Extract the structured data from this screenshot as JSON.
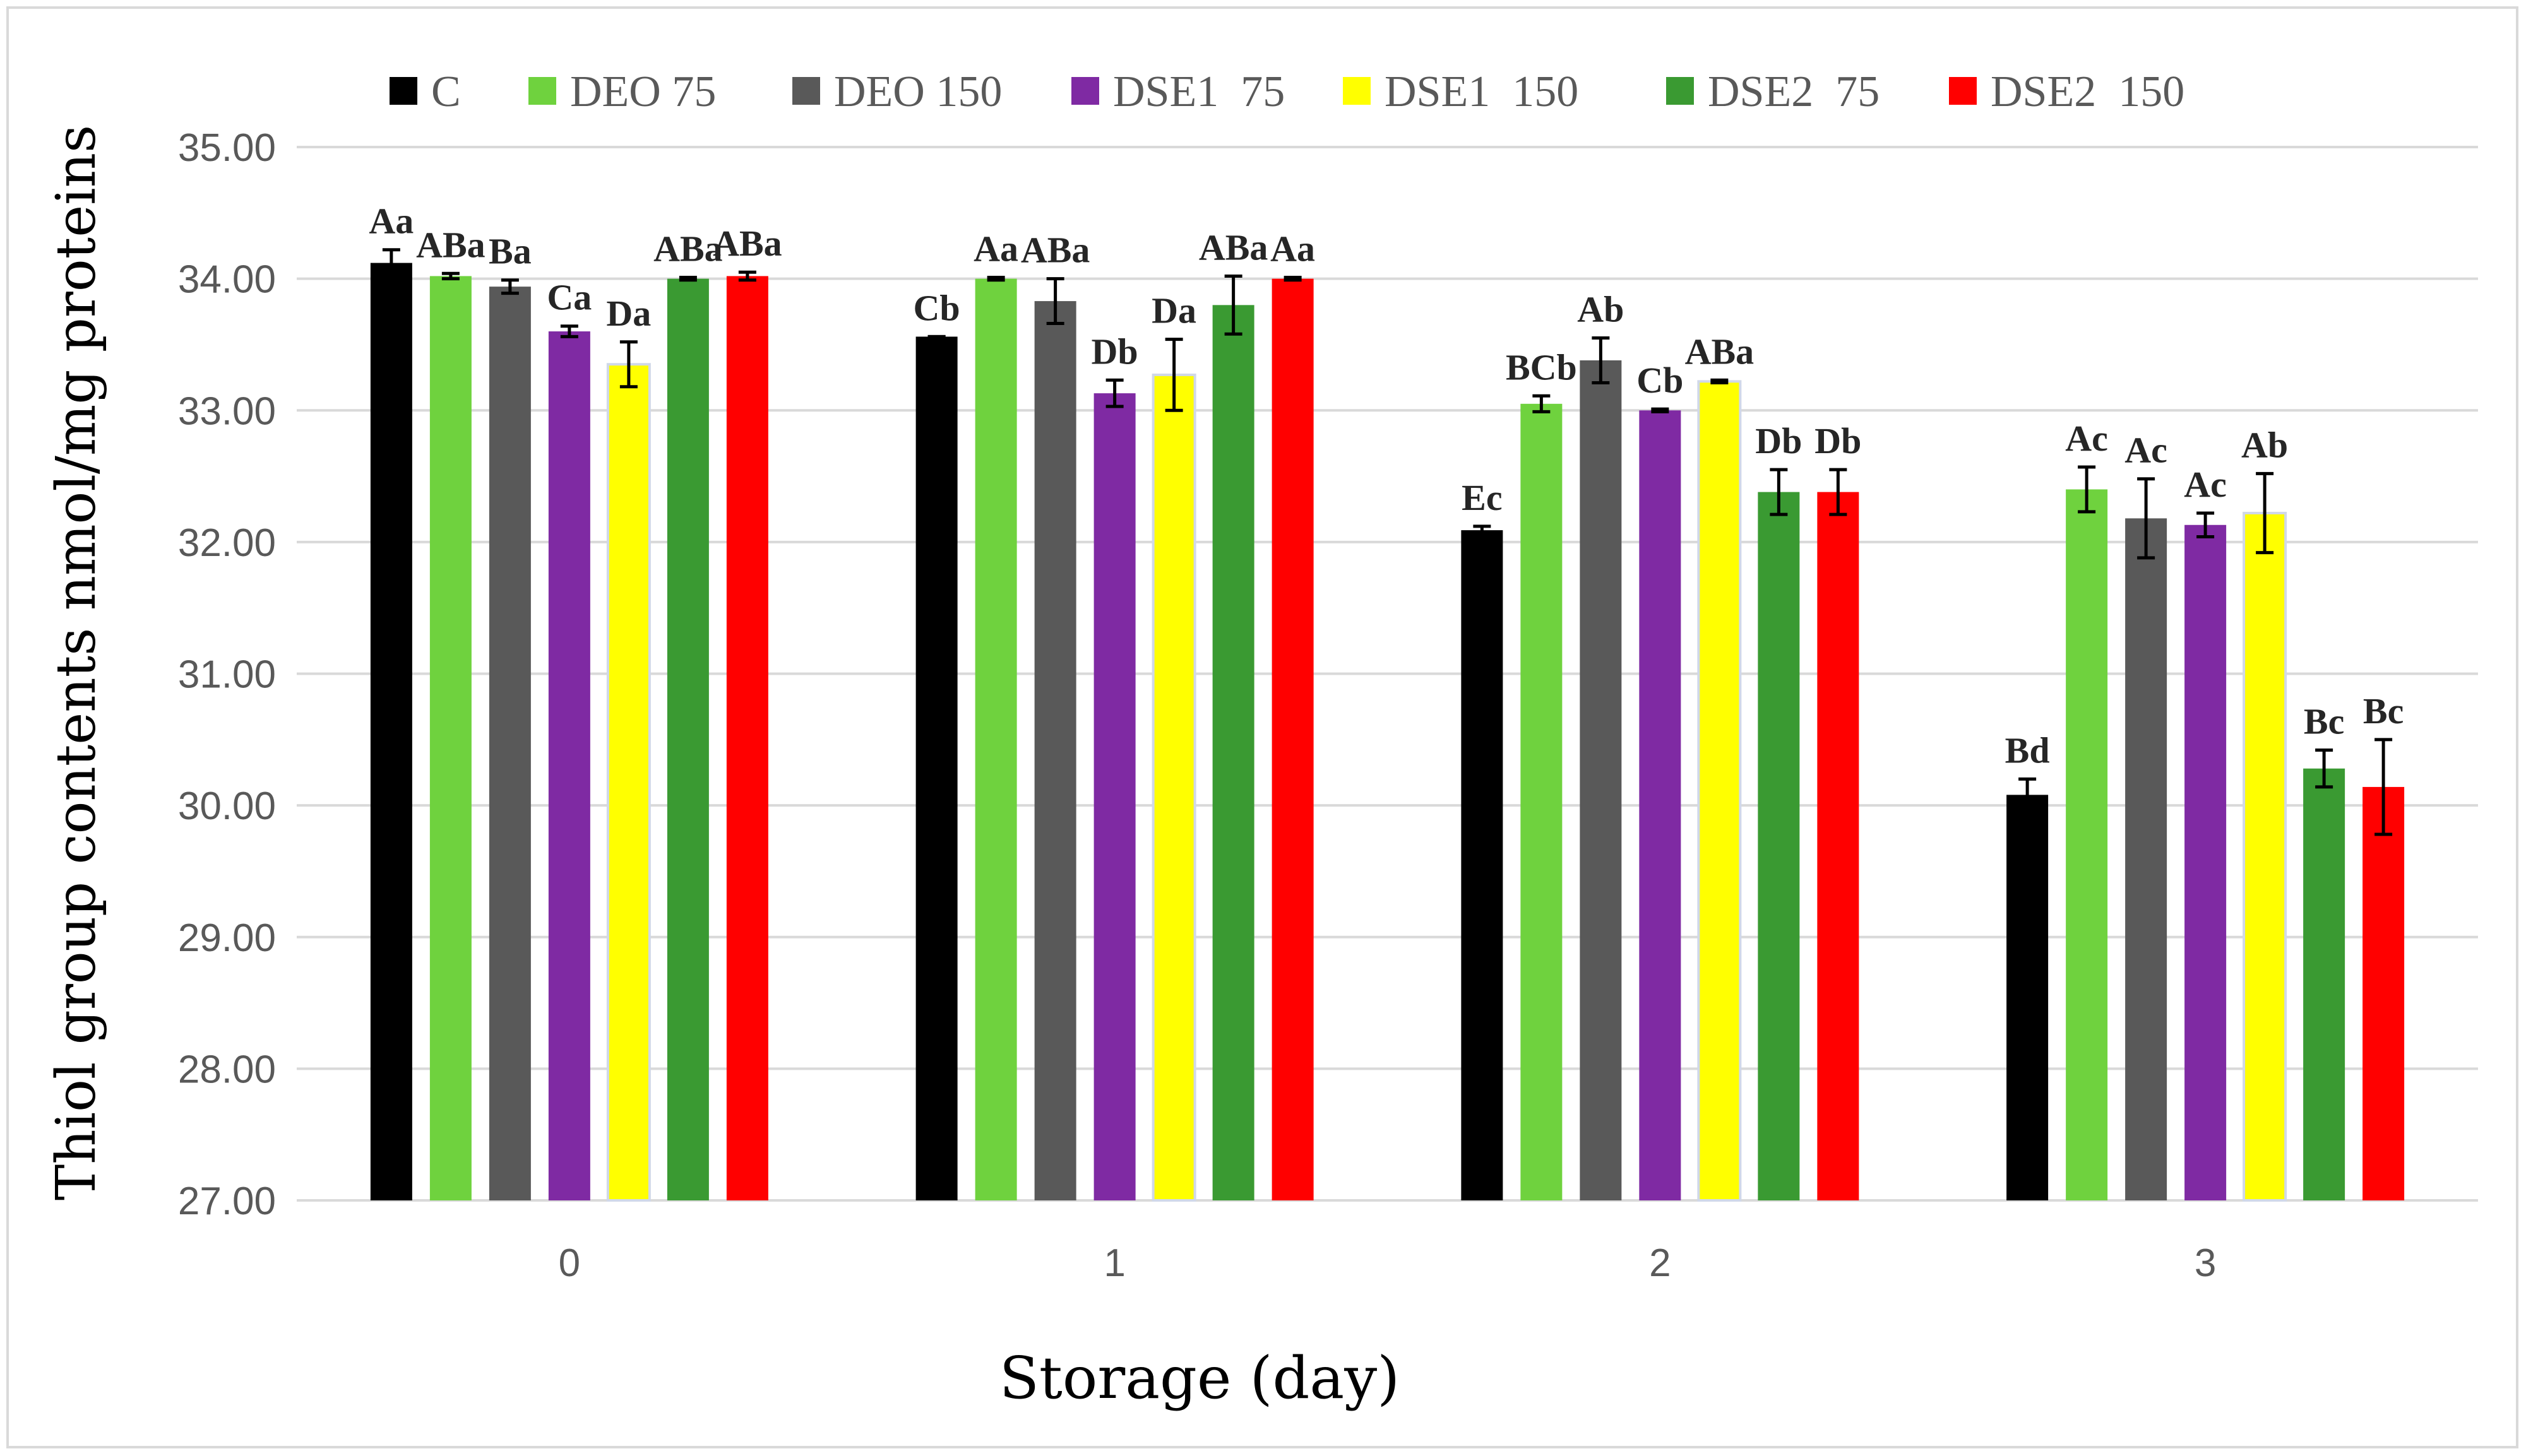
{
  "chart_data": {
    "type": "bar",
    "title": "",
    "xlabel": "Storage (day)",
    "ylabel": "Thiol group contents nmol/mg proteins",
    "categories": [
      "0",
      "1",
      "2",
      "3"
    ],
    "ylim": [
      27,
      35
    ],
    "ytick_step": 1,
    "ytick_labels": [
      "27.00",
      "28.00",
      "29.00",
      "30.00",
      "31.00",
      "32.00",
      "33.00",
      "34.00",
      "35.00"
    ],
    "grid": true,
    "legend_position": "top",
    "series": [
      {
        "name": "C",
        "color": "#000000",
        "values": [
          34.12,
          33.56,
          32.09,
          30.08
        ],
        "errors": [
          0.1,
          0.0,
          0.03,
          0.12
        ],
        "labels": [
          "Aa",
          "Cb",
          "Ec",
          "Bd"
        ],
        "label_colors": [
          "#595959",
          "#595959",
          "#595959",
          "#595959"
        ]
      },
      {
        "name": "DEO 75",
        "color": "#6fd23e",
        "values": [
          34.02,
          34.0,
          33.05,
          32.4
        ],
        "errors": [
          0.02,
          0.01,
          0.06,
          0.17
        ],
        "labels": [
          "ABa",
          "Aa",
          "BCb",
          "Ac"
        ]
      },
      {
        "name": "DEO 150",
        "color": "#595959",
        "values": [
          33.94,
          33.83,
          33.38,
          32.18
        ],
        "errors": [
          0.05,
          0.17,
          0.17,
          0.3
        ],
        "labels": [
          "Ba",
          "ABa",
          "Ab",
          "Ac"
        ]
      },
      {
        "name": "DSE1  75",
        "color": "#7f2aa3",
        "values": [
          33.6,
          33.13,
          33.0,
          32.13
        ],
        "errors": [
          0.04,
          0.1,
          0.01,
          0.09
        ],
        "labels": [
          "Ca",
          "Db",
          "Cb",
          "Ac"
        ]
      },
      {
        "name": "DSE1  150",
        "color": "#ffff00",
        "values": [
          33.35,
          33.27,
          33.22,
          32.22
        ],
        "errors": [
          0.17,
          0.27,
          0.01,
          0.3
        ],
        "labels": [
          "Da",
          "Da",
          "ABa",
          "Ab"
        ]
      },
      {
        "name": "DSE2  75",
        "color": "#3a9a32",
        "values": [
          34.0,
          33.8,
          32.38,
          30.28
        ],
        "errors": [
          0.01,
          0.22,
          0.17,
          0.14
        ],
        "labels": [
          "ABa",
          "ABa",
          "Db",
          "Bc"
        ]
      },
      {
        "name": "DSE2  150",
        "color": "#ff0000",
        "values": [
          34.02,
          34.0,
          32.38,
          30.14
        ],
        "errors": [
          0.03,
          0.01,
          0.17,
          0.36
        ],
        "labels": [
          "ABa",
          "Aa",
          "Db",
          "Bc"
        ]
      }
    ]
  }
}
